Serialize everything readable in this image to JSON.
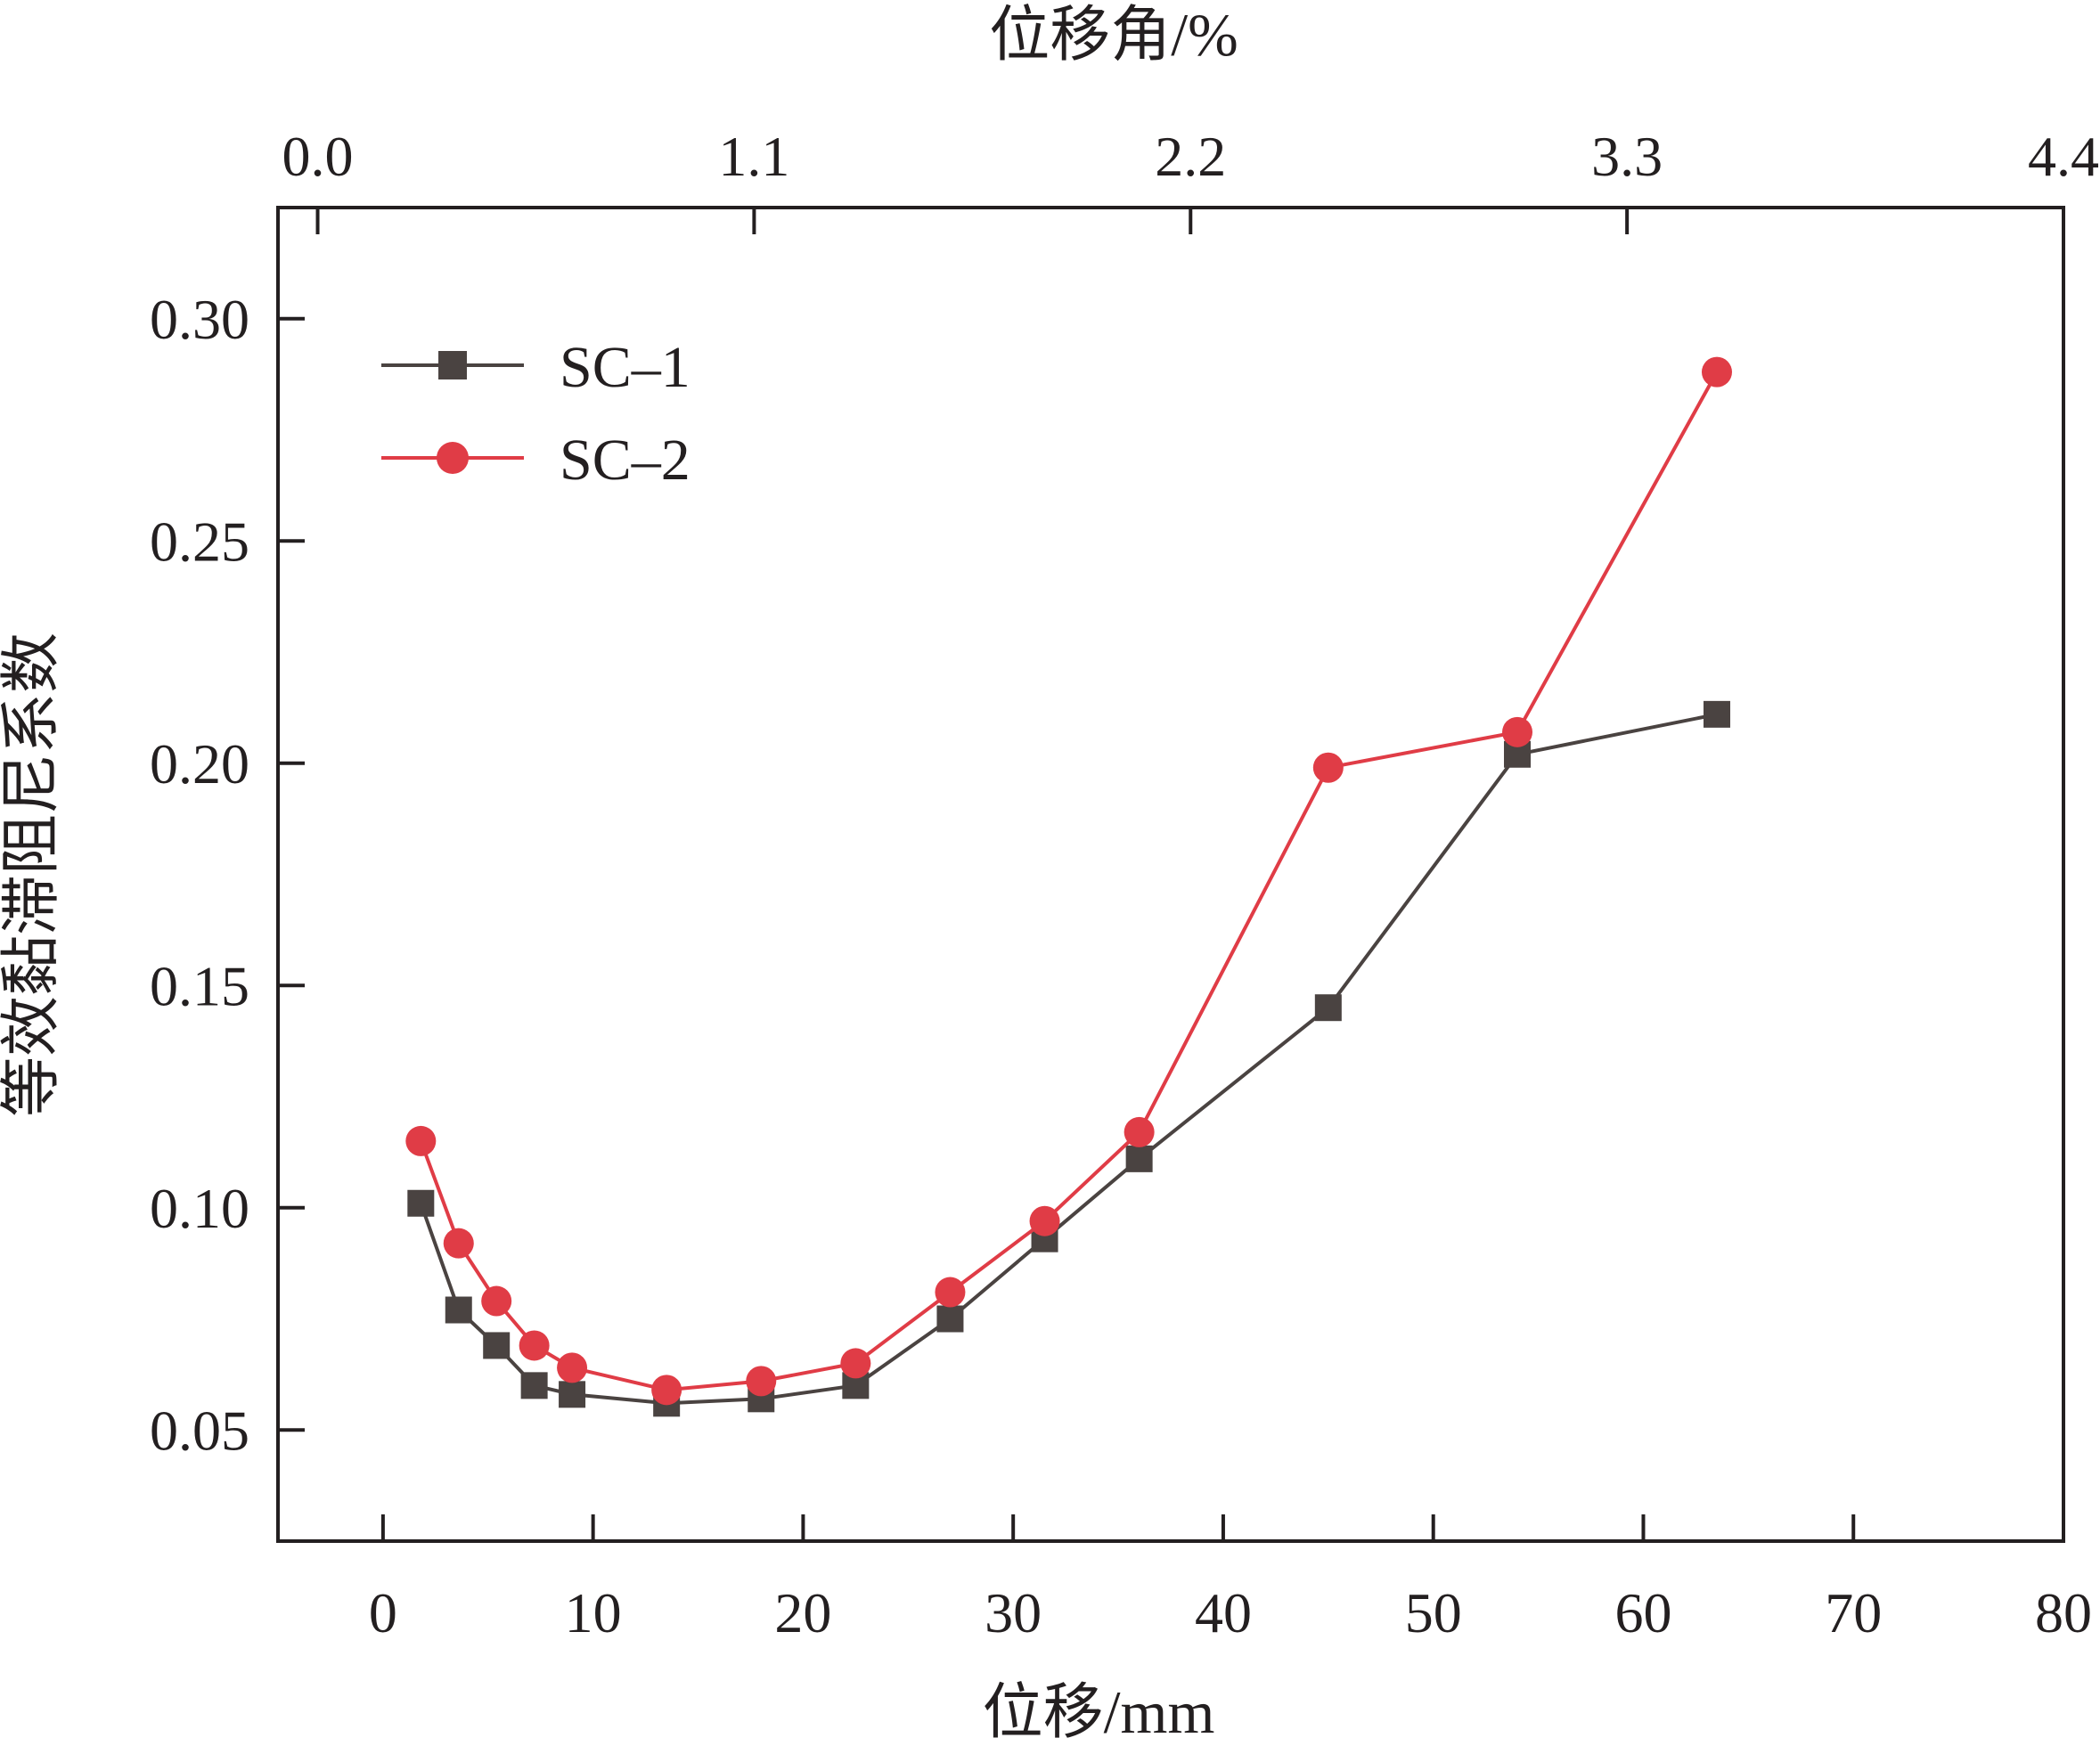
{
  "chart_data": {
    "type": "line",
    "xlabel": "位移/mm",
    "x2label": "位移角/%",
    "ylabel": "等效黏滞阻尼系数",
    "xlim": [
      -5,
      80
    ],
    "ylim": [
      0.025,
      0.325
    ],
    "x2lim": [
      -0.1,
      4.4
    ],
    "xticks": [
      "0",
      "10",
      "20",
      "30",
      "40",
      "50",
      "60",
      "70",
      "80"
    ],
    "yticks": [
      "0.05",
      "0.10",
      "0.15",
      "0.20",
      "0.25",
      "0.30"
    ],
    "x2ticks": [
      "0.0",
      "1.1",
      "2.2",
      "3.3",
      "4.4"
    ],
    "legend_position": "top-left",
    "grid": false,
    "series": [
      {
        "name": "SC–1",
        "color": "#4a4341",
        "marker": "square",
        "x": [
          1.8,
          3.6,
          5.4,
          7.2,
          9.0,
          13.5,
          18.0,
          22.5,
          27.0,
          31.5,
          36.0,
          45.0,
          54.0,
          63.5
        ],
        "y": [
          0.101,
          0.077,
          0.069,
          0.06,
          0.058,
          0.056,
          0.057,
          0.06,
          0.075,
          0.093,
          0.111,
          0.145,
          0.202,
          0.211
        ]
      },
      {
        "name": "SC–2",
        "color": "#e03c46",
        "marker": "circle",
        "x": [
          1.8,
          3.6,
          5.4,
          7.2,
          9.0,
          13.5,
          18.0,
          22.5,
          27.0,
          31.5,
          36.0,
          45.0,
          54.0,
          63.5
        ],
        "y": [
          0.115,
          0.092,
          0.079,
          0.069,
          0.064,
          0.059,
          0.061,
          0.065,
          0.081,
          0.097,
          0.117,
          0.199,
          0.207,
          0.288
        ]
      }
    ]
  }
}
